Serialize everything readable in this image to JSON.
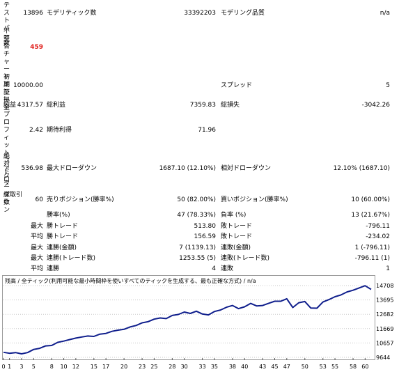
{
  "report": {
    "test_bars": {
      "label": "テストバー数",
      "value": "13896"
    },
    "modeling_ticks": {
      "label": "モデリティック数",
      "value": "33392203"
    },
    "modeling_quality": {
      "label": "モデリング品質",
      "value": "n/a"
    },
    "mismatch_errors": {
      "label": "不整合チャートエラー",
      "value": "459"
    },
    "initial_deposit": {
      "label": "初期証拠金",
      "value": "10000.00"
    },
    "spread": {
      "label": "スプレッド",
      "value": "5"
    },
    "net_profit": {
      "label": "純益",
      "value": "4317.57"
    },
    "gross_profit": {
      "label": "総利益",
      "value": "7359.83"
    },
    "gross_loss": {
      "label": "総損失",
      "value": "-3042.26"
    },
    "profit_factor": {
      "label": "プロフィットファクタ",
      "value": "2.42"
    },
    "expected_payoff": {
      "label": "期待利得",
      "value": "71.96"
    },
    "abs_drawdown": {
      "label": "絶対ドローダウン",
      "value": "536.98"
    },
    "max_drawdown": {
      "label": "最大ドローダウン",
      "value": "1687.10 (12.10%)"
    },
    "rel_drawdown": {
      "label": "相対ドローダウン",
      "value": "12.10% (1687.10)"
    },
    "total_trades": {
      "label": "総取引数",
      "value": "60"
    },
    "short_positions": {
      "label": "売りポジション(勝率%)",
      "value": "50 (82.00%)"
    },
    "long_positions": {
      "label": "買いポジション(勝率%)",
      "value": "10 (60.00%)"
    },
    "win_rate": {
      "label": "勝率(%)",
      "value": "47 (78.33%)"
    },
    "loss_rate": {
      "label": "負率 (%)",
      "value": "13 (21.67%)"
    },
    "max_label": "最大",
    "avg_label": "平均",
    "largest_win": {
      "label": "勝トレード",
      "value": "513.80"
    },
    "largest_loss": {
      "label": "敗トレード",
      "value": "-796.11"
    },
    "avg_win": {
      "label": "勝トレード",
      "value": "156.59"
    },
    "avg_loss": {
      "label": "敗トレード",
      "value": "-234.02"
    },
    "max_consec_wins_amt": {
      "label": "連勝(金額)",
      "value": "7 (1139.13)"
    },
    "max_consec_losses_amt": {
      "label": "連敗(金額)",
      "value": "1 (-796.11)"
    },
    "max_consec_profit": {
      "label": "連勝(トレード数)",
      "value": "1253.55 (5)"
    },
    "max_consec_loss": {
      "label": "連敗(トレード数)",
      "value": "-796.11 (1)"
    },
    "avg_consec_wins": {
      "label": "連勝",
      "value": "4"
    },
    "avg_consec_losses": {
      "label": "連敗",
      "value": "1"
    }
  },
  "chart_data": {
    "type": "line",
    "title": "残高 / 全ティック(利用可能な最小時間枠を使いすべてのティックを生成する、最も正確な方式) / n/a",
    "x_ticks": [
      "0",
      "1",
      "3",
      "5",
      "8",
      "10",
      "12",
      "15",
      "17",
      "20",
      "23",
      "25",
      "28",
      "30",
      "33",
      "35",
      "38",
      "40",
      "43",
      "45",
      "47",
      "50",
      "53",
      "55",
      "58",
      "60"
    ],
    "y_ticks": [
      "14708",
      "13695",
      "12682",
      "11669",
      "10657",
      "9644"
    ],
    "ylim": [
      9644,
      14708
    ],
    "xlim": [
      0,
      61
    ],
    "series": [
      {
        "color": "#0f1e8c",
        "x": [
          0,
          1,
          2,
          3,
          4,
          5,
          6,
          7,
          8,
          9,
          10,
          11,
          12,
          13,
          14,
          15,
          16,
          17,
          18,
          19,
          20,
          21,
          22,
          23,
          24,
          25,
          26,
          27,
          28,
          29,
          30,
          31,
          32,
          33,
          34,
          35,
          36,
          37,
          38,
          39,
          40,
          41,
          42,
          43,
          44,
          45,
          46,
          47,
          48,
          49,
          50,
          51,
          52,
          53,
          54,
          55,
          56,
          57,
          58,
          59,
          60,
          61
        ],
        "y": [
          10000,
          9930,
          9980,
          9890,
          9980,
          10200,
          10280,
          10450,
          10480,
          10700,
          10790,
          10900,
          11000,
          11080,
          11150,
          11120,
          11280,
          11330,
          11480,
          11560,
          11620,
          11790,
          11890,
          12080,
          12160,
          12340,
          12420,
          12380,
          12600,
          12670,
          12840,
          12740,
          12900,
          12700,
          12640,
          12880,
          12980,
          13180,
          13300,
          13080,
          13210,
          13450,
          13270,
          13300,
          13460,
          13600,
          13600,
          13780,
          13160,
          13500,
          13580,
          13120,
          13110,
          13550,
          13720,
          13920,
          14050,
          14260,
          14380,
          14540,
          14700,
          14440
        ]
      }
    ]
  }
}
